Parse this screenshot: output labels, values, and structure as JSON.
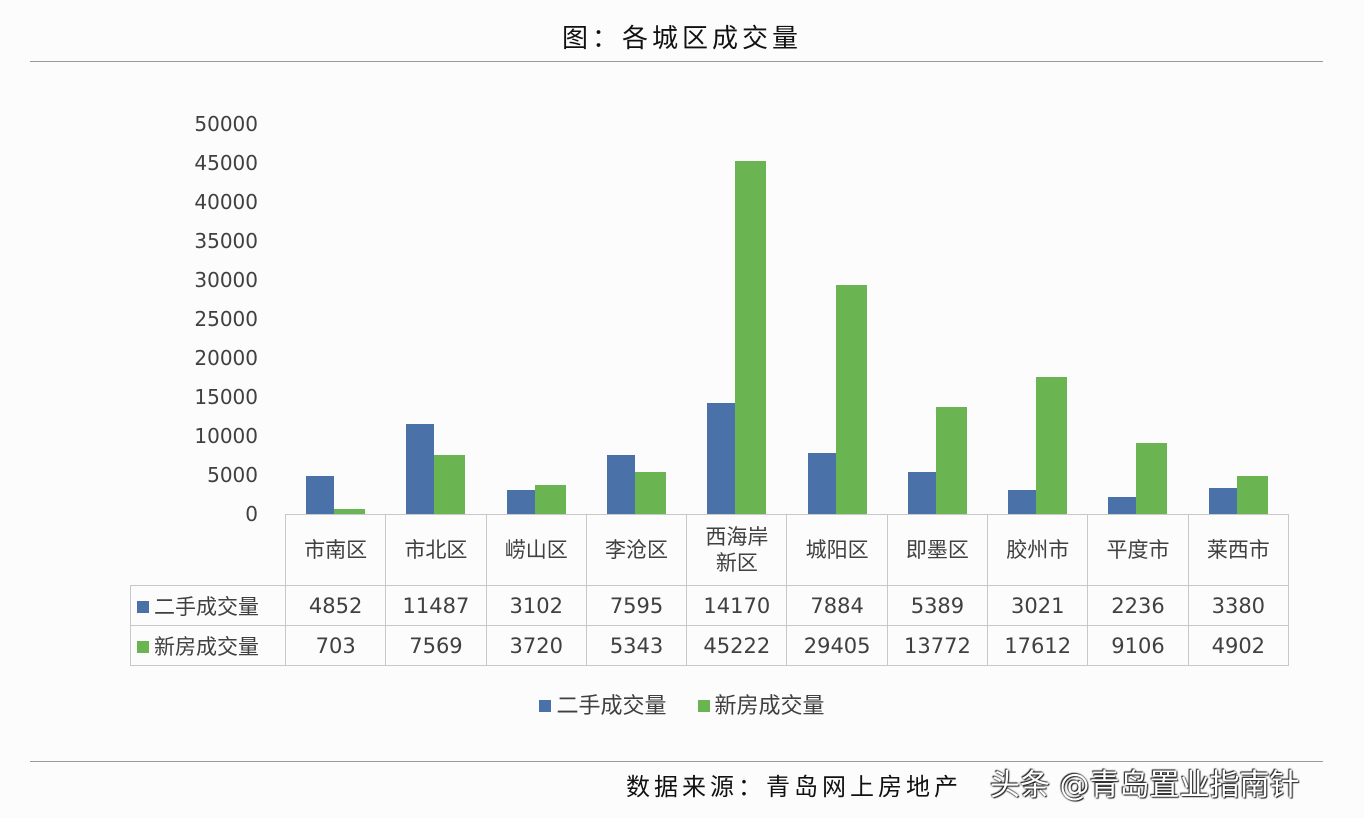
{
  "header": {
    "title": "图：各城区成交量"
  },
  "footer": {
    "source": "数据来源：青岛网上房地产",
    "watermark": "头条 @青岛置业指南针"
  },
  "colors": {
    "series0": "#4a72a8",
    "series1": "#6ab552"
  },
  "chart_data": {
    "type": "bar",
    "title": "图：各城区成交量",
    "xlabel": "",
    "ylabel": "",
    "ylim": [
      0,
      50000
    ],
    "yticks": [
      0,
      5000,
      10000,
      15000,
      20000,
      25000,
      30000,
      35000,
      40000,
      45000,
      50000
    ],
    "grid": false,
    "legend_position": "bottom",
    "data_table": true,
    "categories": [
      "市南区",
      "市北区",
      "崂山区",
      "李沧区",
      "西海岸新区",
      "城阳区",
      "即墨区",
      "胶州市",
      "平度市",
      "莱西市"
    ],
    "series": [
      {
        "name": "二手成交量",
        "color": "#4a72a8",
        "values": [
          4852,
          11487,
          3102,
          7595,
          14170,
          7884,
          5389,
          3021,
          2236,
          3380
        ]
      },
      {
        "name": "新房成交量",
        "color": "#6ab552",
        "values": [
          703,
          7569,
          3720,
          5343,
          45222,
          29405,
          13772,
          17612,
          9106,
          4902
        ]
      }
    ]
  },
  "table": {
    "headers": [
      "市南区",
      "市北区",
      "崂山区",
      "李沧区",
      "西海岸\n新区",
      "城阳区",
      "即墨区",
      "胶州市",
      "平度市",
      "莱西市"
    ],
    "rows": [
      {
        "label": "二手成交量",
        "cells": [
          "4852",
          "11487",
          "3102",
          "7595",
          "14170",
          "7884",
          "5389",
          "3021",
          "2236",
          "3380"
        ]
      },
      {
        "label": "新房成交量",
        "cells": [
          "703",
          "7569",
          "3720",
          "5343",
          "45222",
          "29405",
          "13772",
          "17612",
          "9106",
          "4902"
        ]
      }
    ]
  },
  "legend": {
    "items": [
      "二手成交量",
      "新房成交量"
    ]
  }
}
